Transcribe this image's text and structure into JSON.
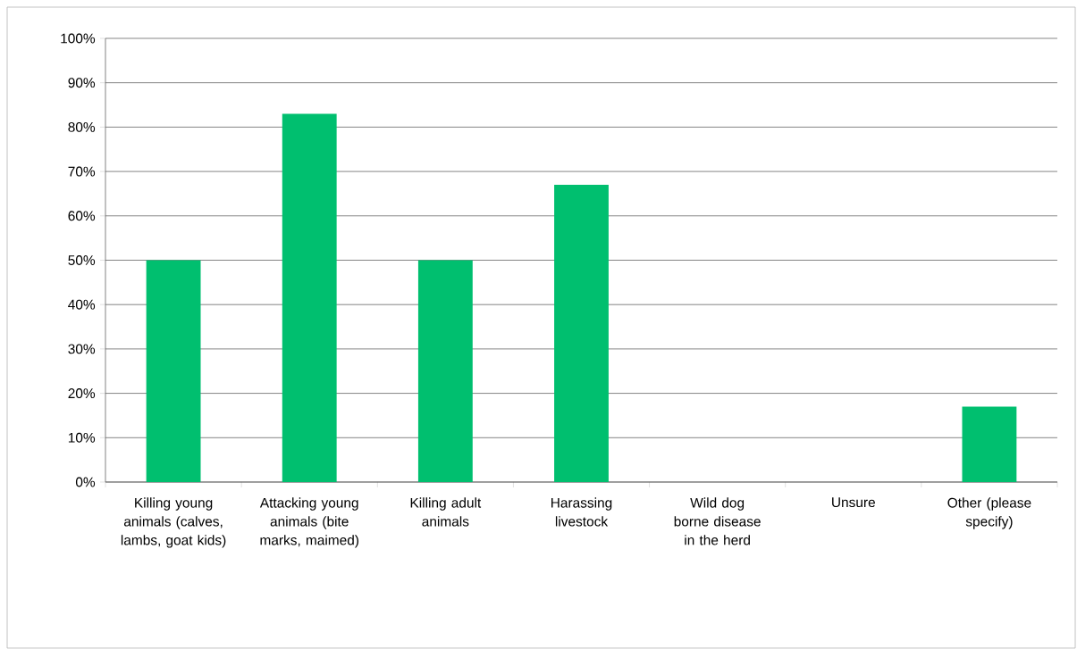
{
  "chart_data": {
    "type": "bar",
    "categories": [
      "Killing young animals (calves, lambs, goat kids)",
      "Attacking young animals (bite marks, maimed)",
      "Killing adult animals",
      "Harassing livestock",
      "Wild dog borne disease in the herd",
      "Unsure",
      "Other (please specify)"
    ],
    "values": [
      50,
      83,
      50,
      67,
      0,
      0,
      17
    ],
    "color": "#00bf6f",
    "ylim": [
      0,
      100
    ],
    "yticks": [
      {
        "value": 0,
        "label": "0%"
      },
      {
        "value": 10,
        "label": "10%"
      },
      {
        "value": 20,
        "label": "20%"
      },
      {
        "value": 30,
        "label": "30%"
      },
      {
        "value": 40,
        "label": "40%"
      },
      {
        "value": 50,
        "label": "50%"
      },
      {
        "value": 60,
        "label": "60%"
      },
      {
        "value": 70,
        "label": "70%"
      },
      {
        "value": 80,
        "label": "80%"
      },
      {
        "value": 90,
        "label": "90%"
      },
      {
        "value": 100,
        "label": "100%"
      }
    ],
    "grid": "y"
  }
}
